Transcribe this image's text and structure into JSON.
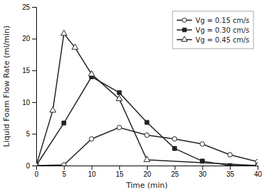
{
  "chart_data": {
    "type": "line",
    "xlabel": "Time (min)",
    "ylabel": "Liquid Foam Flow Rate (ml/min)",
    "xlim": [
      0,
      40
    ],
    "ylim": [
      0,
      25
    ],
    "xticks": [
      0,
      5,
      10,
      15,
      20,
      25,
      30,
      35,
      40
    ],
    "yticks": [
      0,
      5,
      10,
      15,
      20,
      25
    ],
    "grid": false,
    "legend": "upper right",
    "series": [
      {
        "name": "Vg = 0.15 cm/s",
        "color": "#222222",
        "marker": "circle-open",
        "x": [
          0,
          5,
          10,
          15,
          20,
          25,
          30,
          35,
          40
        ],
        "values": [
          0,
          0.1,
          4.2,
          6.0,
          4.8,
          4.2,
          3.4,
          1.7,
          0.6
        ]
      },
      {
        "name": "Vg = 0.30 cm/s",
        "color": "#222222",
        "marker": "square",
        "x": [
          0,
          5,
          10,
          15,
          20,
          25,
          30,
          35,
          40
        ],
        "values": [
          0,
          6.7,
          14.0,
          11.5,
          6.8,
          2.7,
          0.7,
          0,
          0
        ]
      },
      {
        "name": "Vg = 0.45 cm/s",
        "color": "#222222",
        "marker": "triangle-open",
        "x": [
          0,
          3,
          5,
          7,
          10,
          15,
          20,
          40
        ],
        "values": [
          0,
          8.7,
          20.8,
          18.6,
          14.4,
          10.5,
          0.9,
          0
        ]
      }
    ]
  }
}
